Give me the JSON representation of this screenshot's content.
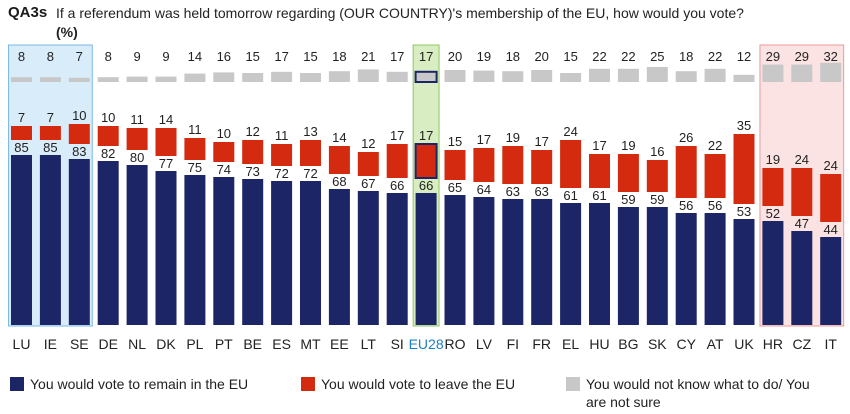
{
  "header": {
    "code": "QA3s",
    "question": "If a referendum was held tomorrow regarding (OUR COUNTRY)'s membership of the EU, how would you vote?",
    "unit": "(%)"
  },
  "chart_data": {
    "type": "bar",
    "stacked": true,
    "categories": [
      "LU",
      "IE",
      "SE",
      "DE",
      "NL",
      "DK",
      "PL",
      "PT",
      "BE",
      "ES",
      "MT",
      "EE",
      "LT",
      "SI",
      "EU28",
      "RO",
      "LV",
      "FI",
      "FR",
      "EL",
      "HU",
      "BG",
      "SK",
      "CY",
      "AT",
      "UK",
      "HR",
      "CZ",
      "IT"
    ],
    "series": [
      {
        "name": "You would vote to remain in the EU",
        "color": "#1c2566",
        "values": [
          85,
          85,
          83,
          82,
          80,
          77,
          75,
          74,
          73,
          72,
          72,
          68,
          67,
          66,
          66,
          65,
          64,
          63,
          63,
          61,
          61,
          59,
          59,
          56,
          56,
          53,
          52,
          47,
          44
        ]
      },
      {
        "name": "You would vote to leave the EU",
        "color": "#d42a0f",
        "values": [
          7,
          7,
          10,
          10,
          11,
          14,
          11,
          10,
          12,
          11,
          13,
          14,
          12,
          17,
          17,
          15,
          17,
          19,
          17,
          24,
          17,
          19,
          16,
          26,
          22,
          35,
          19,
          24,
          24
        ]
      },
      {
        "name": "You would not know what to do/ You are not sure",
        "color": "#c8c8c8",
        "values": [
          8,
          8,
          7,
          8,
          9,
          9,
          14,
          16,
          15,
          17,
          15,
          18,
          21,
          17,
          17,
          20,
          19,
          18,
          20,
          15,
          22,
          22,
          25,
          18,
          22,
          12,
          29,
          29,
          32
        ]
      }
    ],
    "highlight_groups": [
      {
        "categories": [
          "LU",
          "IE",
          "SE"
        ],
        "color": "#d9ecfa",
        "border": "#7ab8e6"
      },
      {
        "categories": [
          "EU28"
        ],
        "color": "#d8edc2",
        "border": "#8cc862"
      },
      {
        "categories": [
          "HR",
          "CZ",
          "IT"
        ],
        "color": "#fbe3e3",
        "border": "#e89a9a"
      }
    ],
    "legend_position": "bottom"
  },
  "legend": {
    "remain": "You would vote to remain in the EU",
    "leave": "You would vote to leave the EU",
    "unsure_line1": "You would not know what to do/ You",
    "unsure_line2": "are not sure"
  },
  "colors": {
    "remain": "#1c2566",
    "leave": "#d42a0f",
    "unsure": "#c8c8c8",
    "text": "#222222",
    "eu28_label": "#1b7fc2"
  }
}
